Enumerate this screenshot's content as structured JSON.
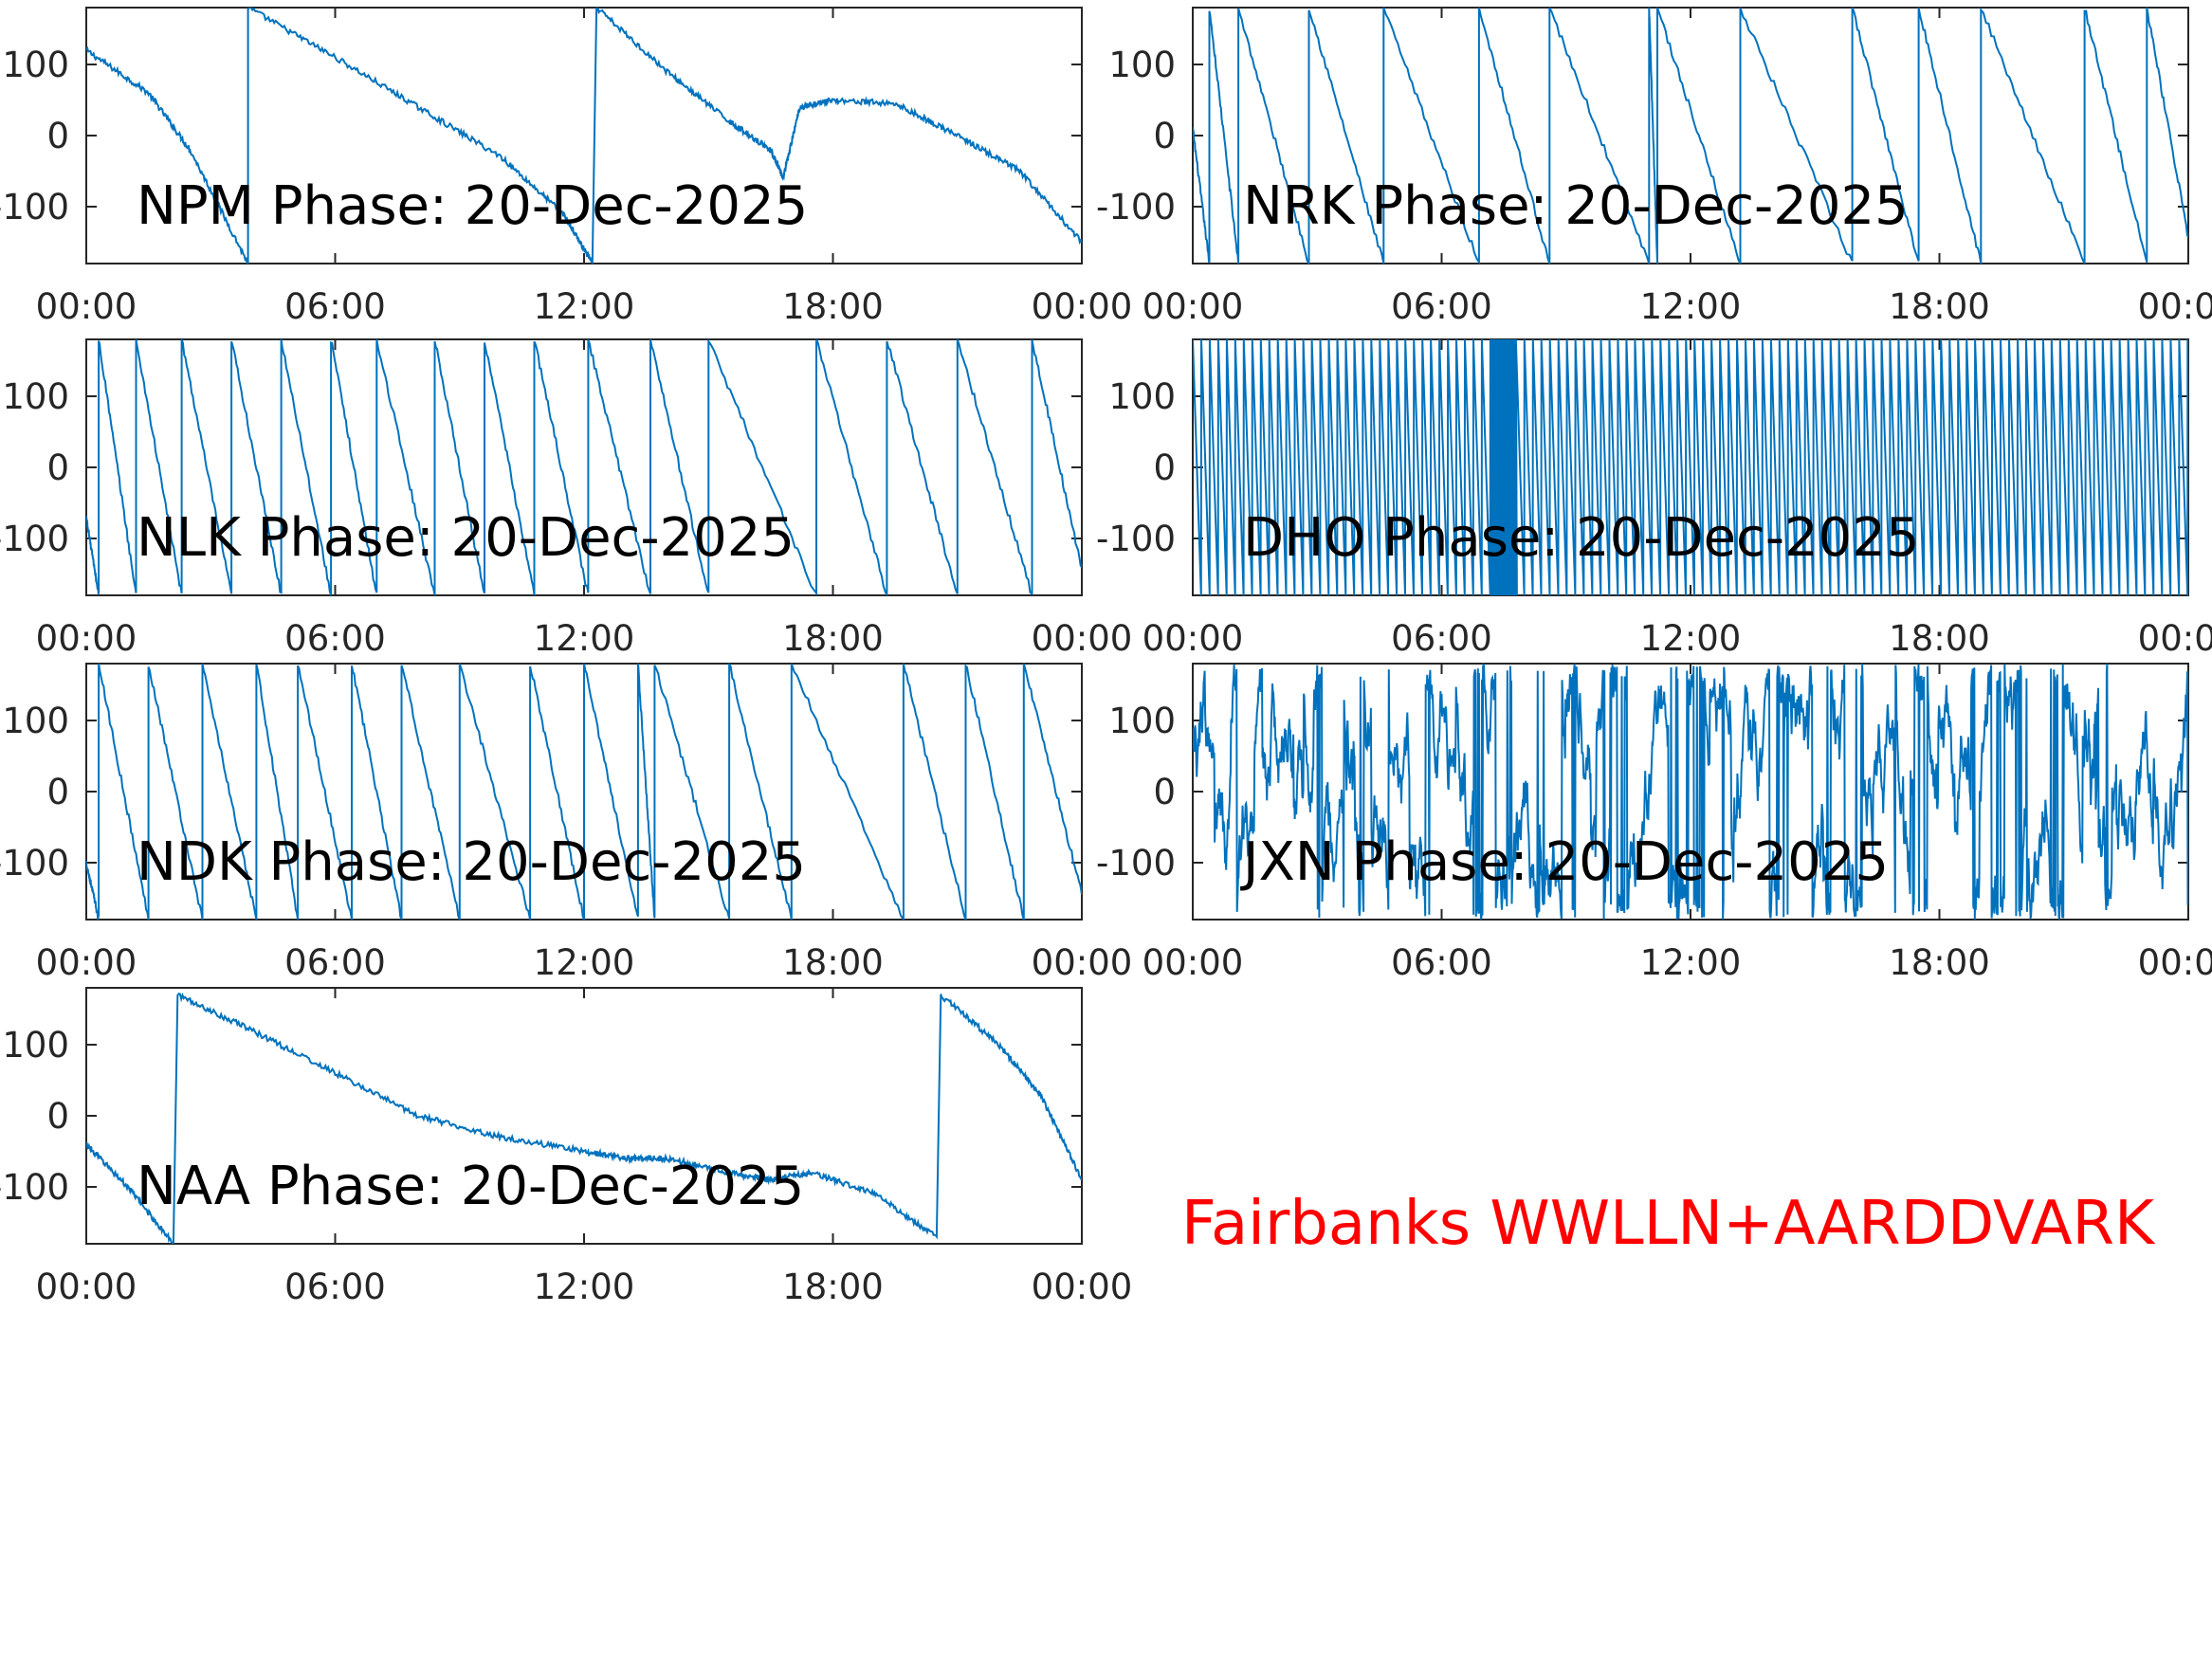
{
  "figure": {
    "footer": "Fairbanks WWLLN+AARDDVARK",
    "footer_color": "#ff0000",
    "line_color": "#0072bd",
    "axis_color": "#262626"
  },
  "chart_data": [
    {
      "type": "line",
      "title": "NPM Phase: 20-Dec-2025",
      "x_ticks": [
        "00:00",
        "06:00",
        "12:00",
        "18:00",
        "00:00"
      ],
      "y_ticks": [
        "100",
        "0",
        "-100"
      ],
      "xlim_hours": [
        0,
        24
      ],
      "ylim": [
        -180,
        180
      ],
      "segments": [
        {
          "x": [
            0,
            1.5,
            2.5,
            3.9
          ],
          "y": [
            120,
            60,
            -20,
            -180
          ]
        },
        {
          "x": [
            3.9,
            6,
            8,
            10,
            11.5,
            12.2
          ],
          "y": [
            180,
            110,
            40,
            -30,
            -110,
            -180
          ]
        },
        {
          "x": [
            12.3,
            14,
            15.5,
            16.5,
            16.8,
            17.2,
            18,
            19.5,
            21,
            22.5,
            24
          ],
          "y": [
            180,
            90,
            20,
            -20,
            -60,
            40,
            50,
            45,
            0,
            -50,
            -150
          ]
        }
      ]
    },
    {
      "type": "line",
      "title": "NRK Phase: 20-Dec-2025",
      "x_ticks": [
        "00:00",
        "06:00",
        "12:00",
        "18:00",
        "00:00"
      ],
      "y_ticks": [
        "100",
        "0",
        "-100"
      ],
      "xlim_hours": [
        0,
        24
      ],
      "ylim": [
        -180,
        180
      ],
      "wraps_hours": [
        0.4,
        1.1,
        2.8,
        4.6,
        6.9,
        8.6,
        11.0,
        11.2,
        13.2,
        15.9,
        17.5,
        19.0,
        21.5,
        23.0
      ],
      "start_phase": 10
    },
    {
      "type": "line",
      "title": "NLK Phase: 20-Dec-2025",
      "x_ticks": [
        "00:00",
        "06:00",
        "12:00",
        "18:00",
        "00:00"
      ],
      "y_ticks": [
        "100",
        "0",
        "-100"
      ],
      "xlim_hours": [
        0,
        24
      ],
      "ylim": [
        -180,
        180
      ],
      "wraps_hours": [
        0.3,
        1.2,
        2.3,
        3.5,
        4.7,
        5.9,
        7.0,
        8.4,
        9.6,
        10.8,
        12.1,
        13.6,
        15.0,
        17.6,
        19.3,
        21.0,
        22.8
      ],
      "start_phase": -70
    },
    {
      "type": "line",
      "title": "DHO Phase: 20-Dec-2025",
      "x_ticks": [
        "00:00",
        "06:00",
        "12:00",
        "18:00",
        "00:00"
      ],
      "y_ticks": [
        "100",
        "0",
        "-100"
      ],
      "xlim_hours": [
        0,
        24
      ],
      "ylim": [
        -180,
        180
      ],
      "cycle_period_hours": 0.205,
      "dense_band_hours": [
        7.1,
        7.7
      ]
    },
    {
      "type": "line",
      "title": "NDK Phase: 20-Dec-2025",
      "x_ticks": [
        "00:00",
        "06:00",
        "12:00",
        "18:00",
        "00:00"
      ],
      "y_ticks": [
        "100",
        "0",
        "-100"
      ],
      "xlim_hours": [
        0,
        24
      ],
      "ylim": [
        -180,
        180
      ],
      "wraps_hours": [
        0.3,
        1.5,
        2.8,
        4.1,
        5.1,
        6.4,
        7.6,
        9.0,
        10.7,
        12.0,
        13.3,
        13.7,
        15.5,
        17.0,
        19.7,
        21.2,
        22.6
      ],
      "start_phase": -100
    },
    {
      "type": "line",
      "title": "JXN Phase: 20-Dec-2025",
      "x_ticks": [
        "00:00",
        "06:00",
        "12:00",
        "18:00",
        "00:00"
      ],
      "y_ticks": [
        "100",
        "0",
        "-100"
      ],
      "xlim_hours": [
        0,
        24
      ],
      "ylim": [
        -180,
        180
      ],
      "noisy": true
    },
    {
      "type": "line",
      "title": "NAA Phase: 20-Dec-2025",
      "x_ticks": [
        "00:00",
        "06:00",
        "12:00",
        "18:00",
        "00:00"
      ],
      "y_ticks": [
        "100",
        "0",
        "-100"
      ],
      "xlim_hours": [
        0,
        24
      ],
      "ylim": [
        -180,
        180
      ],
      "segments": [
        {
          "x": [
            0,
            1,
            2.1
          ],
          "y": [
            -40,
            -100,
            -180
          ]
        },
        {
          "x": [
            2.2,
            4,
            6,
            8,
            10,
            12,
            13,
            14,
            15.5,
            16.5,
            17.5,
            19,
            20.5
          ],
          "y": [
            170,
            120,
            60,
            0,
            -30,
            -50,
            -60,
            -60,
            -80,
            -90,
            -80,
            -110,
            -170
          ]
        },
        {
          "x": [
            20.6,
            22,
            23,
            24
          ],
          "y": [
            170,
            100,
            30,
            -90
          ]
        }
      ]
    }
  ]
}
